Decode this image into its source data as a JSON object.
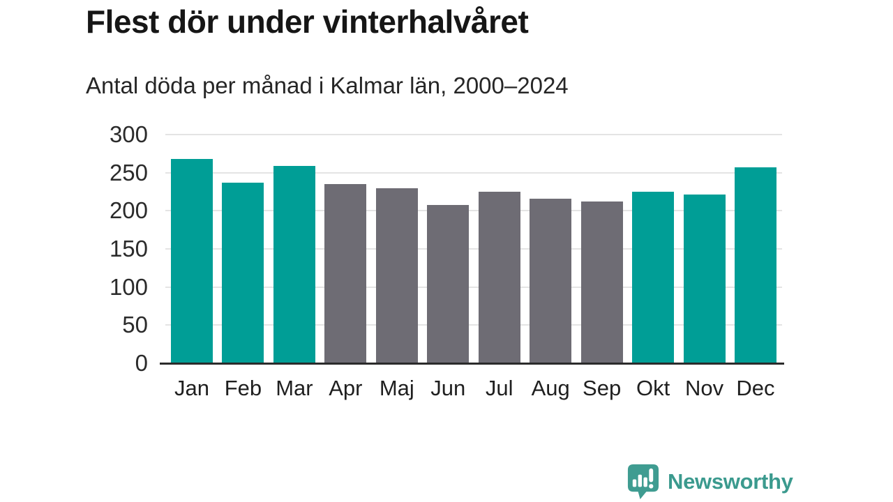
{
  "header": {
    "title": "Flest dör under vinterhalvåret",
    "subtitle": "Antal döda per månad i Kalmar län, 2000–2024"
  },
  "chart_data": {
    "type": "bar",
    "title": "Flest dör under vinterhalvåret",
    "subtitle": "Antal döda per månad i Kalmar län, 2000–2024",
    "categories": [
      "Jan",
      "Feb",
      "Mar",
      "Apr",
      "Maj",
      "Jun",
      "Jul",
      "Aug",
      "Sep",
      "Okt",
      "Nov",
      "Dec"
    ],
    "values": [
      268,
      237,
      259,
      235,
      230,
      208,
      225,
      216,
      212,
      225,
      221,
      257
    ],
    "bar_groups": [
      "winter",
      "winter",
      "winter",
      "summer",
      "summer",
      "summer",
      "summer",
      "summer",
      "summer",
      "winter",
      "winter",
      "winter"
    ],
    "palette": {
      "winter": "#009e96",
      "summer": "#6e6c74"
    },
    "xlabel": "",
    "ylabel": "",
    "ylim": [
      0,
      300
    ],
    "yticks": [
      0,
      50,
      100,
      150,
      200,
      250,
      300
    ],
    "grid": true,
    "legend": false,
    "gridline_color": "#e4e4e4",
    "baseline_color": "#2b2b2b"
  },
  "footer": {
    "brand": "Newsworthy",
    "brand_color": "#3b9a8e",
    "logo_icon": "speech-bubble-bar-chart-exclamation"
  }
}
